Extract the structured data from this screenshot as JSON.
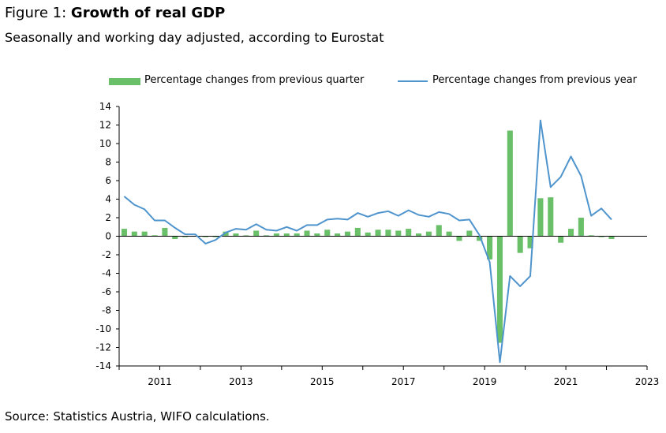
{
  "title_prefix": "Figure 1: ",
  "title_bold": "Growth of real GDP",
  "subtitle": "Seasonally and working day adjusted, according to Eurostat",
  "source": "Source: Statistics Austria, WIFO calculations.",
  "colors": {
    "bar": "#6abf69",
    "line": "#4f94cd",
    "axis": "#000000",
    "grid": "#d0d0d0"
  },
  "chart_data": {
    "type": "bar",
    "title": "Growth of real GDP",
    "legend": "top",
    "ylim": [
      -14,
      14
    ],
    "yticks": [
      "14",
      "12",
      "10",
      "8",
      "6",
      "4",
      "2",
      "0",
      "-2",
      "-4",
      "-6",
      "-8",
      "-10",
      "-12",
      "-14"
    ],
    "xticks": [
      {
        "label": "2011",
        "index": 2
      },
      {
        "label": "2013",
        "index": 10
      },
      {
        "label": "2015",
        "index": 18
      },
      {
        "label": "2017",
        "index": 26
      },
      {
        "label": "2019",
        "index": 34
      },
      {
        "label": "2021",
        "index": 42
      },
      {
        "label": "2023",
        "index": 50
      }
    ],
    "n_quarters": 52,
    "series": [
      {
        "name": "Percentage changes from previous quarter",
        "kind": "bar",
        "values": [
          0.8,
          0.5,
          0.5,
          0.1,
          0.9,
          -0.3,
          -0.1,
          0.0,
          -0.1,
          -0.1,
          0.5,
          0.3,
          0.1,
          0.6,
          0.1,
          0.3,
          0.3,
          0.3,
          0.6,
          0.3,
          0.7,
          0.3,
          0.5,
          0.9,
          0.4,
          0.7,
          0.7,
          0.6,
          0.8,
          0.3,
          0.5,
          1.2,
          0.5,
          -0.5,
          0.6,
          -0.5,
          -2.5,
          -11.5,
          11.4,
          -1.8,
          -1.3,
          4.1,
          4.2,
          -0.7,
          0.8,
          2.0,
          0.1,
          -0.1,
          -0.3
        ]
      },
      {
        "name": "Percentage changes from previous year",
        "kind": "line",
        "values": [
          4.3,
          3.4,
          2.9,
          1.7,
          1.7,
          0.9,
          0.2,
          0.2,
          -0.8,
          -0.4,
          0.4,
          0.8,
          0.7,
          1.3,
          0.7,
          0.6,
          1.0,
          0.6,
          1.2,
          1.2,
          1.8,
          1.9,
          1.8,
          2.5,
          2.1,
          2.5,
          2.7,
          2.2,
          2.8,
          2.3,
          2.1,
          2.6,
          2.4,
          1.7,
          1.8,
          0.1,
          -2.8,
          -13.6,
          -4.3,
          -5.4,
          -4.3,
          12.5,
          5.3,
          6.4,
          8.6,
          6.5,
          2.2,
          3.0,
          1.8
        ]
      }
    ]
  }
}
